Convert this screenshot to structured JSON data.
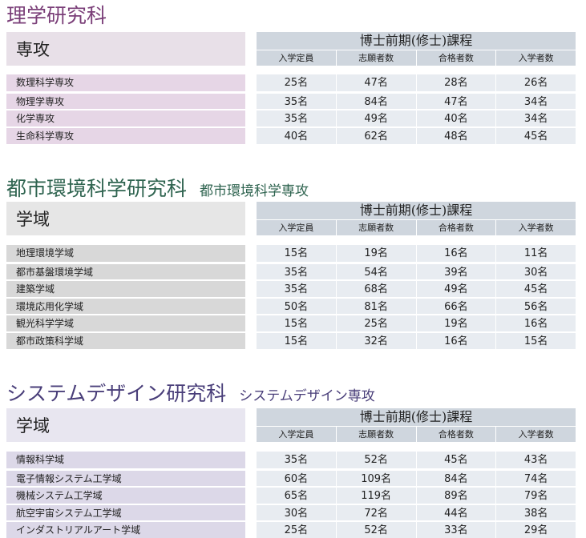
{
  "colors": {
    "sec1_title": "#7a3e78",
    "sec1_band": "#e6d6e6",
    "sec1_hdr": "#e8e0e8",
    "sec2_title": "#2f6450",
    "sec2_band": "#d8d8d8",
    "sec2_hdr": "#e6e6e6",
    "sec3_title": "#4a3f7a",
    "sec3_band": "#dcd8e8",
    "sec3_hdr": "#e8e6f0"
  },
  "common": {
    "course": "博士前期(修士)課程",
    "cols": [
      "入学定員",
      "志願者数",
      "合格者数",
      "入学者数"
    ]
  },
  "sections": [
    {
      "title": "理学研究科",
      "subtitle": "",
      "group_label": "専攻",
      "rows": [
        {
          "name": "数理科学専攻",
          "values": [
            "25名",
            "47名",
            "28名",
            "26名"
          ]
        },
        {
          "name": "物理学専攻",
          "values": [
            "35名",
            "84名",
            "47名",
            "34名"
          ]
        },
        {
          "name": "化学専攻",
          "values": [
            "35名",
            "49名",
            "40名",
            "34名"
          ]
        },
        {
          "name": "生命科学専攻",
          "values": [
            "40名",
            "62名",
            "48名",
            "45名"
          ]
        }
      ]
    },
    {
      "title": "都市環境科学研究科",
      "subtitle": "都市環境科学専攻",
      "group_label": "学域",
      "rows": [
        {
          "name": "地理環境学域",
          "values": [
            "15名",
            "19名",
            "16名",
            "11名"
          ]
        },
        {
          "name": "都市基盤環境学域",
          "values": [
            "35名",
            "54名",
            "39名",
            "30名"
          ]
        },
        {
          "name": "建築学域",
          "values": [
            "35名",
            "68名",
            "49名",
            "45名"
          ]
        },
        {
          "name": "環境応用化学域",
          "values": [
            "50名",
            "81名",
            "66名",
            "56名"
          ]
        },
        {
          "name": "観光科学学域",
          "values": [
            "15名",
            "25名",
            "19名",
            "16名"
          ]
        },
        {
          "name": "都市政策科学域",
          "values": [
            "15名",
            "32名",
            "16名",
            "15名"
          ]
        }
      ]
    },
    {
      "title": "システムデザイン研究科",
      "subtitle": "システムデザイン専攻",
      "group_label": "学域",
      "rows": [
        {
          "name": "情報科学域",
          "values": [
            "35名",
            "52名",
            "45名",
            "43名"
          ]
        },
        {
          "name": "電子情報システム工学域",
          "values": [
            "60名",
            "109名",
            "84名",
            "74名"
          ]
        },
        {
          "name": "機械システム工学域",
          "values": [
            "65名",
            "119名",
            "89名",
            "79名"
          ]
        },
        {
          "name": "航空宇宙システム工学域",
          "values": [
            "30名",
            "72名",
            "44名",
            "38名"
          ]
        },
        {
          "name": "インダストリアルアート学域",
          "values": [
            "25名",
            "52名",
            "33名",
            "29名"
          ]
        }
      ]
    }
  ]
}
